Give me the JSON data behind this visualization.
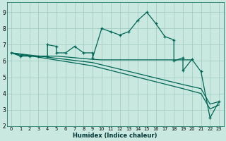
{
  "xlabel": "Humidex (Indice chaleur)",
  "bg_color": "#c8e8e0",
  "grid_color": "#a0c8c0",
  "line_color": "#006655",
  "xlim": [
    -0.5,
    23.5
  ],
  "ylim": [
    2.0,
    9.6
  ],
  "yticks": [
    2,
    3,
    4,
    5,
    6,
    7,
    8,
    9
  ],
  "xticks": [
    0,
    1,
    2,
    3,
    4,
    5,
    6,
    7,
    8,
    9,
    10,
    11,
    12,
    13,
    14,
    15,
    16,
    17,
    18,
    19,
    20,
    21,
    22,
    23
  ],
  "wavy_x": [
    0,
    1,
    2,
    3,
    4,
    4,
    5,
    5,
    6,
    7,
    8,
    9,
    9,
    10,
    11,
    12,
    13,
    14,
    15,
    16,
    17,
    18,
    18,
    19,
    19,
    20,
    21,
    22,
    23
  ],
  "wavy_y": [
    6.5,
    6.3,
    6.3,
    6.3,
    6.3,
    7.0,
    6.9,
    6.5,
    6.5,
    6.9,
    6.5,
    6.5,
    6.2,
    8.0,
    7.8,
    7.6,
    7.8,
    8.5,
    9.0,
    8.3,
    7.5,
    7.3,
    6.0,
    6.2,
    5.4,
    6.1,
    5.35,
    2.5,
    3.5
  ],
  "flat_x": [
    0,
    1,
    2,
    3,
    4,
    5,
    6,
    7,
    8,
    9,
    10,
    11,
    12,
    13,
    14,
    15,
    16,
    17,
    18,
    19,
    20
  ],
  "flat_y": [
    6.5,
    6.35,
    6.3,
    6.3,
    6.3,
    6.3,
    6.25,
    6.2,
    6.15,
    6.1,
    6.07,
    6.07,
    6.07,
    6.07,
    6.07,
    6.07,
    6.07,
    6.07,
    6.07,
    6.07,
    6.07
  ],
  "diag1_x": [
    0,
    9,
    19,
    21,
    22,
    23
  ],
  "diag1_y": [
    6.5,
    5.9,
    4.55,
    4.3,
    3.35,
    3.5
  ],
  "diag2_x": [
    0,
    9,
    19,
    21,
    22,
    23
  ],
  "diag2_y": [
    6.5,
    5.7,
    4.3,
    4.0,
    3.05,
    3.3
  ]
}
